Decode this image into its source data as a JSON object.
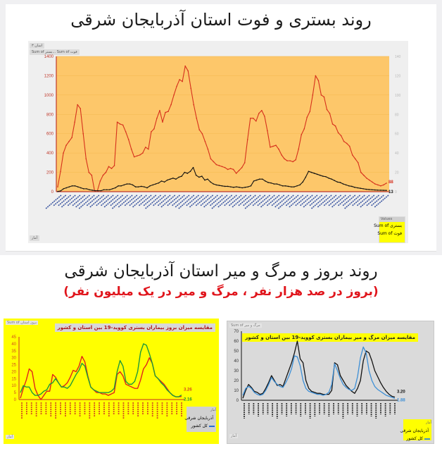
{
  "top_section": {
    "title": "روند بستری و فوت استان آذربایجان شرقی",
    "filter_tag": "اسان ۳",
    "field_tags": "Sum of بستر... Sum of فوت",
    "bottom_tag": "آمار",
    "legend": {
      "header": "Values",
      "items": [
        {
          "label": "بستری Sum of",
          "color": "#d6301c"
        },
        {
          "label": "فوت Sum of",
          "color": "#111111"
        }
      ]
    }
  },
  "middle_section": {
    "title": "روند بروز و مرگ و میر استان آذربایجان شرقی",
    "subtitle": "(بروز در صد هزار نفر ، مرگ و میر در یک میلیون نفر)"
  },
  "bottom_left": {
    "panel_title": "مقایسه میزان بروز بیماران بستری کووید-19 بین استان و کشور",
    "field_tag": "Sum of بروز استان",
    "bottom_tag": "آمار",
    "legend": {
      "header": "آمار",
      "items": [
        {
          "label": "آذربایجان شرقی",
          "color": "#e0241a"
        },
        {
          "label": "کل کشور",
          "color": "#2a6fd1"
        }
      ]
    }
  },
  "bottom_right": {
    "panel_title": "مقایسه میزان مرگ و میر بیماران بستری کووید-19 بین استان و کشور",
    "field_tag": "Sum of مرگ و میر",
    "bottom_tag": "آمار",
    "legend": {
      "header": "آمار",
      "items": [
        {
          "label": "آذربایجان شرقی",
          "color": "#111111"
        },
        {
          "label": "کل کشور",
          "color": "#3d8fd6"
        }
      ]
    }
  },
  "chart_data": [
    {
      "type": "line",
      "title": "روند بستری و فوت استان آذربایجان شرقی",
      "xlabel": "هفته (1399 - 1400)",
      "ylabel": "",
      "ylim": [
        0,
        1400
      ],
      "y2lim": [
        0,
        140
      ],
      "yticks": [
        0,
        200,
        400,
        600,
        800,
        1000,
        1200,
        1400
      ],
      "y2ticks": [
        0,
        20,
        40,
        60,
        80,
        100,
        120,
        140
      ],
      "grid": true,
      "background": "#fdc76a",
      "legend_position": "bottom-right",
      "x_tick_labels_note": "weekly labels from 1399 to 1400 (rotated, illegible)",
      "series": [
        {
          "name": "Sum of بستری",
          "color": "#d6301c",
          "end_label": "88",
          "values": [
            50,
            210,
            400,
            480,
            520,
            560,
            720,
            900,
            860,
            600,
            340,
            200,
            170,
            10,
            10,
            110,
            170,
            200,
            260,
            240,
            270,
            720,
            700,
            690,
            620,
            540,
            440,
            360,
            370,
            380,
            400,
            460,
            440,
            620,
            650,
            760,
            840,
            720,
            820,
            830,
            900,
            1000,
            1090,
            1160,
            1140,
            1300,
            1250,
            1070,
            900,
            760,
            640,
            600,
            520,
            440,
            340,
            310,
            280,
            270,
            260,
            250,
            230,
            240,
            230,
            190,
            220,
            250,
            300,
            540,
            760,
            760,
            730,
            810,
            840,
            780,
            630,
            460,
            470,
            480,
            440,
            380,
            340,
            320,
            320,
            310,
            330,
            440,
            590,
            650,
            770,
            830,
            1000,
            1200,
            1150,
            1000,
            980,
            850,
            810,
            700,
            680,
            610,
            580,
            520,
            500,
            470,
            380,
            340,
            300,
            200,
            170,
            140,
            120,
            100,
            80,
            70,
            60,
            70,
            88
          ]
        },
        {
          "name": "Sum of فوت",
          "color": "#111111",
          "end_label": "13",
          "values": [
            2,
            8,
            30,
            40,
            50,
            60,
            60,
            50,
            40,
            30,
            30,
            20,
            15,
            10,
            10,
            10,
            20,
            20,
            20,
            30,
            40,
            60,
            60,
            70,
            80,
            80,
            70,
            50,
            50,
            55,
            50,
            40,
            60,
            70,
            80,
            90,
            110,
            100,
            120,
            130,
            140,
            130,
            150,
            160,
            200,
            190,
            210,
            250,
            170,
            150,
            160,
            120,
            130,
            100,
            80,
            70,
            65,
            60,
            55,
            55,
            50,
            45,
            50,
            45,
            40,
            45,
            50,
            60,
            110,
            120,
            130,
            130,
            110,
            95,
            90,
            80,
            80,
            70,
            60,
            60,
            55,
            50,
            50,
            60,
            70,
            100,
            150,
            210,
            200,
            190,
            180,
            170,
            160,
            155,
            140,
            130,
            115,
            100,
            95,
            80,
            70,
            60,
            55,
            45,
            40,
            35,
            30,
            25,
            22,
            20,
            18,
            16,
            15,
            14,
            13
          ]
        }
      ]
    },
    {
      "type": "line",
      "title": "مقایسه میزان بروز بیماران بستری کووید-19 بین استان و کشور",
      "xlabel": "هفته (1399 - 1400)",
      "ylabel": "",
      "ylim": [
        0,
        45
      ],
      "yticks": [
        0,
        5,
        10,
        15,
        20,
        25,
        30,
        35,
        40,
        45
      ],
      "grid": false,
      "background": "#ffff00",
      "legend_position": "bottom-right",
      "series": [
        {
          "name": "آذربایجان شرقی",
          "color": "#e0241a",
          "end_label": "2.16",
          "values": [
            1,
            8,
            14,
            22,
            20,
            8,
            3,
            0,
            3,
            6,
            6,
            18,
            16,
            12,
            9,
            10,
            12,
            16,
            21,
            20,
            24,
            31,
            27,
            17,
            9,
            7,
            5,
            5,
            4,
            4,
            3,
            4,
            5,
            18,
            20,
            17,
            11,
            10,
            9,
            8,
            8,
            14,
            22,
            25,
            30,
            26,
            17,
            15,
            13,
            11,
            8,
            5,
            3,
            2,
            2,
            2.16
          ]
        },
        {
          "name": "کل کشور",
          "color": "#1f9a3a",
          "end_label": "3.26",
          "values": [
            5,
            10,
            9,
            9,
            5,
            3,
            3,
            4,
            6,
            7,
            11,
            12,
            15,
            12,
            9,
            9,
            8,
            10,
            14,
            18,
            21,
            26,
            24,
            16,
            9,
            7,
            6,
            5,
            5,
            5,
            5,
            6,
            8,
            20,
            28,
            24,
            13,
            11,
            11,
            13,
            20,
            34,
            40,
            39,
            33,
            26,
            17,
            15,
            12,
            10,
            7,
            5,
            3,
            2,
            2,
            3.26
          ]
        }
      ]
    },
    {
      "type": "line",
      "title": "مقایسه میزان مرگ و میر بیماران بستری کووید-19 بین استان و کشور",
      "xlabel": "هفته (1399 - 1400)",
      "ylabel": "",
      "ylim": [
        0,
        70
      ],
      "yticks": [
        0,
        10,
        20,
        30,
        40,
        50,
        60,
        70
      ],
      "grid": false,
      "background": "#dadada",
      "legend_position": "bottom-right",
      "series": [
        {
          "name": "آذربایجان شرقی",
          "color": "#111111",
          "end_label": "3.20",
          "values": [
            2,
            10,
            16,
            13,
            9,
            8,
            6,
            7,
            12,
            18,
            25,
            20,
            15,
            16,
            14,
            22,
            30,
            38,
            48,
            60,
            42,
            38,
            20,
            12,
            9,
            8,
            7,
            7,
            6,
            6,
            6,
            10,
            38,
            36,
            25,
            20,
            15,
            12,
            9,
            7,
            12,
            20,
            40,
            50,
            48,
            40,
            30,
            24,
            18,
            13,
            9,
            6,
            4,
            3.2
          ]
        },
        {
          "name": "کل کشور",
          "color": "#3d8fd6",
          "end_label": "1.88",
          "values": [
            5,
            12,
            14,
            12,
            8,
            6,
            5,
            6,
            10,
            16,
            23,
            19,
            16,
            14,
            13,
            18,
            24,
            32,
            45,
            44,
            35,
            20,
            12,
            9,
            8,
            7,
            6,
            6,
            5,
            6,
            8,
            16,
            37,
            30,
            22,
            16,
            13,
            11,
            10,
            12,
            24,
            43,
            54,
            48,
            30,
            20,
            14,
            11,
            9,
            7,
            5,
            4,
            3,
            1.88
          ]
        }
      ]
    }
  ]
}
